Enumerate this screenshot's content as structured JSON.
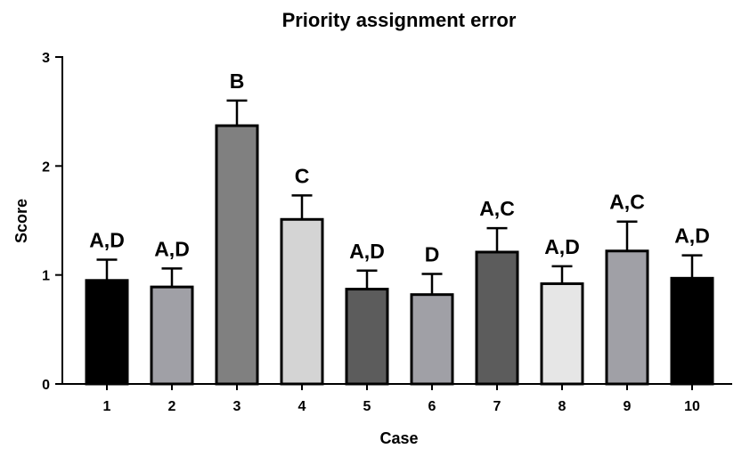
{
  "chart_data": {
    "type": "bar",
    "title": "Priority assignment error",
    "xlabel": "Case",
    "ylabel": "Score",
    "ylim": [
      0,
      3
    ],
    "yticks": [
      0,
      1,
      2,
      3
    ],
    "grid": false,
    "legend": "none",
    "categories": [
      "1",
      "2",
      "3",
      "4",
      "5",
      "6",
      "7",
      "8",
      "9",
      "10"
    ],
    "values": [
      0.95,
      0.89,
      2.37,
      1.51,
      0.87,
      0.82,
      1.21,
      0.92,
      1.22,
      0.97
    ],
    "error_upper": [
      0.19,
      0.17,
      0.23,
      0.22,
      0.17,
      0.19,
      0.22,
      0.16,
      0.27,
      0.21
    ],
    "annotations": [
      "A,D",
      "A,D",
      "B",
      "C",
      "A,D",
      "D",
      "A,C",
      "A,D",
      "A,C",
      "A,D"
    ],
    "bar_colors": [
      "#000000",
      "#a0a0a6",
      "#808080",
      "#d4d4d4",
      "#5c5c5c",
      "#a0a0a6",
      "#5c5c5c",
      "#e6e6e6",
      "#a0a0a6",
      "#000000"
    ]
  }
}
